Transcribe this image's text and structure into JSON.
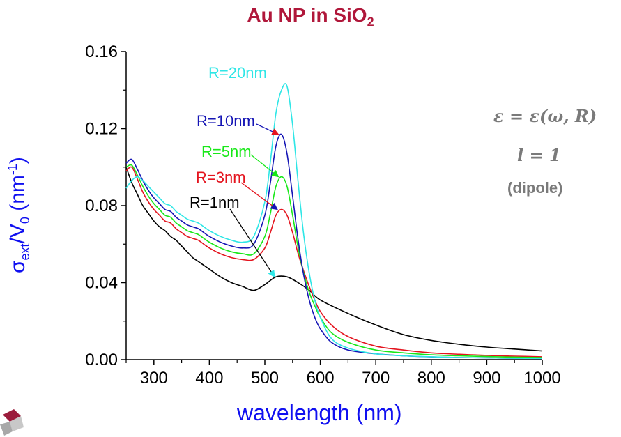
{
  "chart_data": {
    "type": "line",
    "title": "Au NP in SiO",
    "title_sub": "2",
    "xlabel": "wavelength (nm)",
    "ylabel": {
      "sigma": "σ",
      "sigma_sub": "ext",
      "slash_v": "/V",
      "v_sub": "0",
      "unit_open": " (nm",
      "unit_sup": "-1",
      "unit_close": ")"
    },
    "xlim": [
      250,
      1000
    ],
    "ylim": [
      0,
      0.16
    ],
    "xticks": [
      300,
      400,
      500,
      600,
      700,
      800,
      900,
      1000
    ],
    "yticks": [
      0.0,
      0.04,
      0.08,
      0.12,
      0.16
    ],
    "ytick_labels": [
      "0.00",
      "0.04",
      "0.08",
      "0.12",
      "0.16"
    ],
    "series": [
      {
        "name": "R=1nm",
        "color": "#000000",
        "x": [
          250,
          260,
          270,
          280,
          290,
          300,
          310,
          320,
          330,
          340,
          350,
          360,
          370,
          380,
          390,
          400,
          420,
          440,
          460,
          480,
          500,
          520,
          540,
          560,
          580,
          600,
          650,
          700,
          750,
          800,
          850,
          900,
          950,
          1000
        ],
        "y": [
          0.1,
          0.092,
          0.086,
          0.08,
          0.076,
          0.072,
          0.069,
          0.067,
          0.064,
          0.062,
          0.059,
          0.056,
          0.053,
          0.051,
          0.049,
          0.047,
          0.043,
          0.04,
          0.038,
          0.036,
          0.039,
          0.043,
          0.043,
          0.04,
          0.036,
          0.031,
          0.024,
          0.018,
          0.013,
          0.01,
          0.008,
          0.0065,
          0.0055,
          0.0045
        ]
      },
      {
        "name": "R=3nm",
        "color": "#e4141e",
        "x": [
          250,
          260,
          270,
          280,
          290,
          300,
          310,
          320,
          330,
          340,
          350,
          360,
          370,
          380,
          390,
          400,
          420,
          440,
          460,
          480,
          500,
          510,
          520,
          530,
          540,
          550,
          560,
          570,
          580,
          590,
          600,
          620,
          650,
          700,
          750,
          800,
          850,
          900,
          950,
          1000
        ],
        "y": [
          0.098,
          0.1,
          0.094,
          0.087,
          0.082,
          0.078,
          0.075,
          0.072,
          0.071,
          0.068,
          0.066,
          0.064,
          0.063,
          0.062,
          0.06,
          0.058,
          0.055,
          0.053,
          0.052,
          0.052,
          0.058,
          0.066,
          0.075,
          0.078,
          0.075,
          0.066,
          0.055,
          0.046,
          0.038,
          0.031,
          0.025,
          0.018,
          0.012,
          0.007,
          0.005,
          0.0035,
          0.0028,
          0.0022,
          0.0018,
          0.0015
        ]
      },
      {
        "name": "R=5nm",
        "color": "#18e818",
        "x": [
          250,
          260,
          270,
          280,
          290,
          300,
          310,
          320,
          330,
          340,
          350,
          360,
          370,
          380,
          390,
          400,
          420,
          440,
          460,
          480,
          500,
          510,
          520,
          530,
          540,
          550,
          560,
          570,
          580,
          590,
          600,
          620,
          650,
          700,
          750,
          800,
          850,
          900,
          950,
          1000
        ],
        "y": [
          0.1,
          0.101,
          0.096,
          0.09,
          0.085,
          0.081,
          0.078,
          0.075,
          0.074,
          0.071,
          0.069,
          0.067,
          0.066,
          0.065,
          0.063,
          0.061,
          0.058,
          0.056,
          0.055,
          0.055,
          0.064,
          0.076,
          0.09,
          0.095,
          0.09,
          0.075,
          0.058,
          0.045,
          0.035,
          0.028,
          0.022,
          0.014,
          0.009,
          0.005,
          0.0035,
          0.0025,
          0.002,
          0.0016,
          0.0013,
          0.0011
        ]
      },
      {
        "name": "R=10nm",
        "color": "#1515b5",
        "x": [
          250,
          260,
          270,
          280,
          290,
          300,
          310,
          320,
          330,
          340,
          350,
          360,
          370,
          380,
          390,
          400,
          420,
          440,
          460,
          480,
          500,
          510,
          520,
          530,
          540,
          550,
          560,
          570,
          580,
          590,
          600,
          620,
          650,
          700,
          750,
          800,
          850,
          900,
          950,
          1000
        ],
        "y": [
          0.102,
          0.104,
          0.099,
          0.093,
          0.088,
          0.084,
          0.081,
          0.078,
          0.077,
          0.074,
          0.072,
          0.07,
          0.069,
          0.068,
          0.066,
          0.064,
          0.061,
          0.059,
          0.058,
          0.06,
          0.075,
          0.092,
          0.111,
          0.117,
          0.107,
          0.085,
          0.062,
          0.044,
          0.031,
          0.022,
          0.016,
          0.009,
          0.005,
          0.003,
          0.002,
          0.0014,
          0.0011,
          0.0009,
          0.0007,
          0.0006
        ]
      },
      {
        "name": "R=20nm",
        "color": "#2ee6e6",
        "x": [
          250,
          260,
          270,
          280,
          290,
          300,
          310,
          320,
          330,
          340,
          350,
          360,
          370,
          380,
          390,
          400,
          420,
          440,
          460,
          480,
          500,
          510,
          520,
          530,
          540,
          550,
          560,
          570,
          580,
          590,
          600,
          620,
          650,
          700,
          750,
          800,
          850,
          900,
          950,
          1000
        ],
        "y": [
          0.089,
          0.093,
          0.095,
          0.093,
          0.09,
          0.087,
          0.084,
          0.081,
          0.08,
          0.077,
          0.075,
          0.073,
          0.072,
          0.071,
          0.069,
          0.067,
          0.064,
          0.062,
          0.061,
          0.064,
          0.082,
          0.103,
          0.128,
          0.14,
          0.142,
          0.122,
          0.092,
          0.065,
          0.045,
          0.031,
          0.022,
          0.011,
          0.006,
          0.003,
          0.002,
          0.0015,
          0.0011,
          0.0009,
          0.0007,
          0.0006
        ]
      }
    ],
    "annotations": [
      {
        "text": "R=20nm",
        "color": "#2ee6e6"
      },
      {
        "text": "R=10nm",
        "color": "#1515b5",
        "arrow_to": [
          532,
          0.117
        ]
      },
      {
        "text": "R=5nm",
        "color": "#18e818",
        "arrow_to": [
          532,
          0.095
        ]
      },
      {
        "text": "R=3nm",
        "color": "#e4141e",
        "arrow_to": [
          530,
          0.078
        ]
      },
      {
        "text": "R=1nm",
        "color": "#000000",
        "arrow_to": [
          525,
          0.043
        ]
      }
    ]
  },
  "equations": {
    "line1": "ε = ε(ω, R)",
    "line2": "l = 1",
    "line3": "(dipole)"
  }
}
